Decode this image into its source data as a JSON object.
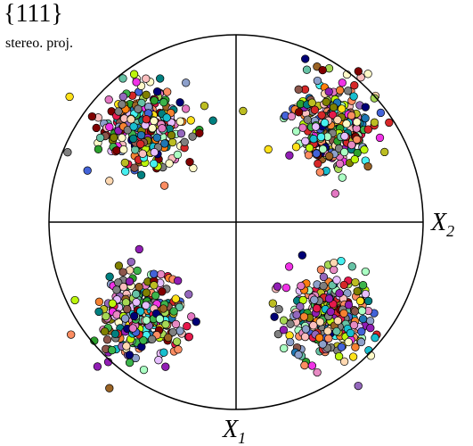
{
  "title": "{111}",
  "subtitle": "stereo. proj.",
  "axes": {
    "x2": {
      "base": "X",
      "sub": "2"
    },
    "x1": {
      "base": "X",
      "sub": "1"
    }
  },
  "colors": {
    "circle": "#000000",
    "crosshair": "#000000",
    "marker_edge": "#000000",
    "palette": [
      "#e6194b",
      "#3cb44b",
      "#ffe119",
      "#4363d8",
      "#f58231",
      "#911eb4",
      "#46f0f0",
      "#f032e6",
      "#bcf60c",
      "#fabebe",
      "#008080",
      "#e6beff",
      "#9a6324",
      "#fffac8",
      "#800000",
      "#aaffc3",
      "#808000",
      "#ffd8b1",
      "#000075",
      "#808080",
      "#2ca02c",
      "#17becf",
      "#d62728",
      "#9467bd",
      "#8c564b",
      "#e377c2",
      "#7f7f7f",
      "#bcbd22",
      "#1f77b4",
      "#ff7f0e",
      "#66c2a5",
      "#fc8d62",
      "#8da0cb",
      "#e78ac3",
      "#a6d854"
    ]
  },
  "chart_data": {
    "type": "scatter",
    "clusters": [
      {
        "name": "",
        "center": [
          -0.5,
          0.5
        ],
        "points": 300
      },
      {
        "name": "",
        "center": [
          0.5,
          0.5
        ],
        "points": 300
      },
      {
        "name": "",
        "center": [
          -0.5,
          -0.5
        ],
        "points": 300
      },
      {
        "name": "",
        "center": [
          0.5,
          -0.5
        ],
        "points": 300
      }
    ],
    "xlim": [
      -1,
      1
    ],
    "ylim": [
      -1,
      1
    ],
    "grid": false
  }
}
